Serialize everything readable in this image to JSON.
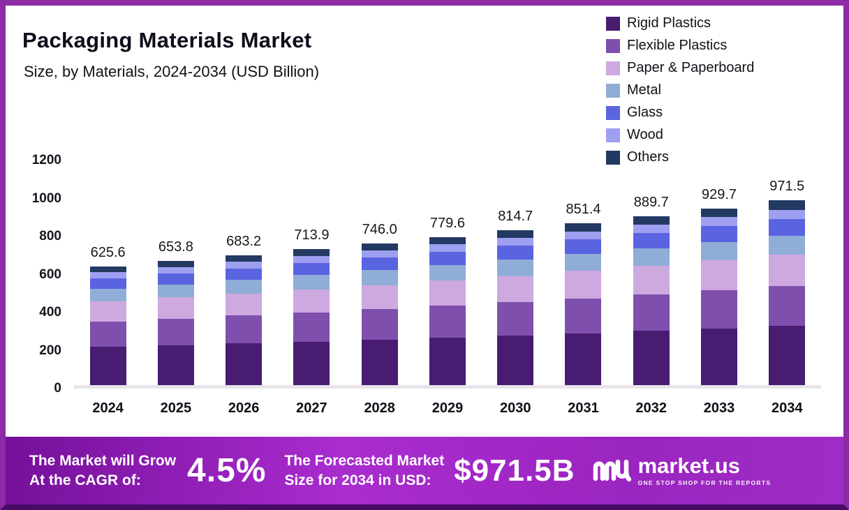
{
  "header": {
    "title": "Packaging Materials Market",
    "subtitle": "Size, by Materials, 2024-2034 (USD Billion)"
  },
  "chart_data": {
    "type": "bar",
    "stacked": true,
    "title": "Packaging Materials Market Size, by Materials, 2024-2034 (USD Billion)",
    "xlabel": "",
    "ylabel": "",
    "ylim": [
      0,
      1200
    ],
    "yticks": [
      0,
      200,
      400,
      600,
      800,
      1000,
      1200
    ],
    "grid": false,
    "legend_position": "top-right",
    "categories": [
      "2024",
      "2025",
      "2026",
      "2027",
      "2028",
      "2029",
      "2030",
      "2031",
      "2032",
      "2033",
      "2034"
    ],
    "totals": [
      625.6,
      653.8,
      683.2,
      713.9,
      746.0,
      779.6,
      814.7,
      851.4,
      889.7,
      929.7,
      971.5
    ],
    "total_labels": [
      "625.6",
      "653.8",
      "683.2",
      "713.9",
      "746.0",
      "779.6",
      "814.7",
      "851.4",
      "889.7",
      "929.7",
      "971.5"
    ],
    "series": [
      {
        "name": "Rigid Plastics",
        "color": "#471c71",
        "values": [
          200.2,
          209.2,
          218.6,
          228.4,
          238.7,
          249.5,
          260.7,
          272.4,
          284.7,
          297.5,
          310.9
        ]
      },
      {
        "name": "Flexible Plastics",
        "color": "#7e4fad",
        "values": [
          134.5,
          140.6,
          146.9,
          153.5,
          160.4,
          167.6,
          175.2,
          183.1,
          191.3,
          199.9,
          208.9
        ]
      },
      {
        "name": "Paper & Paperboard",
        "color": "#cda9e0",
        "values": [
          106.4,
          111.1,
          116.1,
          121.4,
          126.8,
          132.5,
          138.5,
          144.7,
          151.2,
          158.0,
          165.2
        ]
      },
      {
        "name": "Metal",
        "color": "#8fadd6",
        "values": [
          65.7,
          68.6,
          71.7,
          75.0,
          78.3,
          81.9,
          85.5,
          89.4,
          93.4,
          97.6,
          102.0
        ]
      },
      {
        "name": "Glass",
        "color": "#5a63e0",
        "values": [
          56.3,
          58.8,
          61.5,
          64.3,
          67.1,
          70.2,
          73.3,
          76.6,
          80.1,
          83.7,
          87.4
        ]
      },
      {
        "name": "Wood",
        "color": "#9f9ff2",
        "values": [
          31.3,
          32.7,
          34.2,
          35.7,
          37.3,
          39.0,
          40.7,
          42.6,
          44.5,
          46.5,
          48.6
        ]
      },
      {
        "name": "Others",
        "color": "#223a61",
        "values": [
          31.3,
          32.7,
          34.2,
          35.7,
          37.3,
          39.0,
          40.7,
          42.6,
          44.5,
          46.5,
          48.6
        ]
      }
    ]
  },
  "banner": {
    "cagr_label_line1": "The Market will Grow",
    "cagr_label_line2": "At the CAGR of:",
    "cagr_value": "4.5%",
    "forecast_label_line1": "The Forecasted Market",
    "forecast_label_line2": "Size for 2034 in USD:",
    "forecast_value": "$971.5B",
    "brand": "market.us",
    "brand_tagline": "ONE STOP SHOP FOR THE REPORTS"
  },
  "colors": {
    "border": "#8d2ba6",
    "border_bottom": "#470c66",
    "banner_gradient_from": "#75109a",
    "banner_gradient_to": "#a02cc6",
    "baseline": "#e7e4ea",
    "text": "#111118"
  }
}
